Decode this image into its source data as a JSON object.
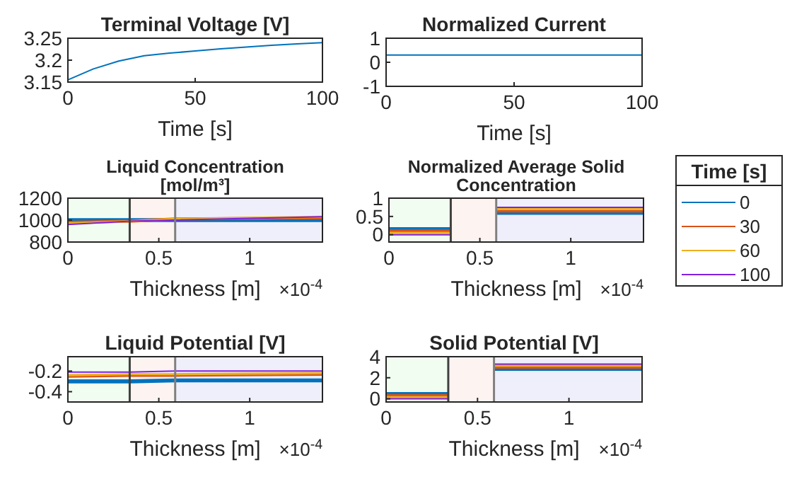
{
  "chart_data": [
    {
      "type": "line",
      "title": "Terminal Voltage [V]",
      "xlabel": "Time [s]",
      "x": [
        0,
        10,
        20,
        30,
        40,
        50,
        60,
        70,
        80,
        90,
        100
      ],
      "xlim": [
        0,
        100
      ],
      "xticks": [
        0,
        50,
        100
      ],
      "ylim": [
        3.15,
        3.25
      ],
      "yticks": [
        3.15,
        3.2,
        3.25
      ],
      "series": [
        {
          "color": "#0072bd",
          "values": [
            3.155,
            3.18,
            3.198,
            3.21,
            3.216,
            3.221,
            3.226,
            3.23,
            3.234,
            3.237,
            3.24
          ]
        }
      ]
    },
    {
      "type": "line",
      "title": "Normalized Current",
      "xlabel": "Time [s]",
      "x": [
        0,
        100
      ],
      "xlim": [
        0,
        100
      ],
      "xticks": [
        0,
        50,
        100
      ],
      "ylim": [
        -1,
        1
      ],
      "yticks": [
        -1,
        0,
        1
      ],
      "series": [
        {
          "color": "#0072bd",
          "values": [
            0.3,
            0.3
          ]
        }
      ]
    },
    {
      "type": "line",
      "title": "Liquid Concentration [mol/m³]",
      "xlabel": "Thickness [m]",
      "annotations": [
        "×10$^{-4}$"
      ],
      "x": [
        0,
        0.34,
        0.59,
        1.4
      ],
      "xlim": [
        0,
        1.4
      ],
      "xticks": [
        0,
        0.5,
        1
      ],
      "ylim": [
        800,
        1200
      ],
      "yticks": [
        800,
        1000,
        1200
      ],
      "bands": [
        {
          "axis": "x",
          "from": 0,
          "to": 0.34,
          "color": "#f2fdf2"
        },
        {
          "axis": "x",
          "from": 0.34,
          "to": 0.59,
          "color": "#fdf3f1"
        },
        {
          "axis": "x",
          "from": 0.59,
          "to": 1.4,
          "color": "#efeffc"
        }
      ],
      "ref_lines": [
        {
          "axis": "x",
          "value": 0.34,
          "color": "#404040"
        },
        {
          "axis": "x",
          "value": 0.59,
          "color": "#808080"
        }
      ],
      "series": [
        {
          "color": "#0072bd",
          "values": [
            1000,
            1000,
            1000,
            1000
          ]
        },
        {
          "color": "#d95319",
          "values": [
            980,
            990,
            1010,
            1020
          ]
        },
        {
          "color": "#edb120",
          "values": [
            970,
            990,
            1010,
            1030
          ]
        },
        {
          "color": "#8020e0",
          "values": [
            960,
            990,
            1000,
            1030
          ]
        }
      ]
    },
    {
      "type": "line",
      "title": "Normalized Average Solid Concentration",
      "xlabel": "Thickness [m]",
      "annotations": [
        "×10$^{-4}$"
      ],
      "legend": "right",
      "legend_title": "Time [s]",
      "x": [
        0,
        0.34,
        0.45,
        0.59,
        1.4
      ],
      "xlim": [
        0,
        1.4
      ],
      "xticks": [
        0,
        0.5,
        1
      ],
      "ylim": [
        -0.2,
        1
      ],
      "yticks": [
        0,
        0.5,
        1
      ],
      "bands": [
        {
          "axis": "x",
          "from": 0,
          "to": 0.34,
          "color": "#f2fdf2"
        },
        {
          "axis": "x",
          "from": 0.34,
          "to": 0.59,
          "color": "#fdf3f1"
        },
        {
          "axis": "x",
          "from": 0.59,
          "to": 1.4,
          "color": "#efeffc"
        }
      ],
      "ref_lines": [
        {
          "axis": "x",
          "value": 0.34,
          "color": "#404040"
        },
        {
          "axis": "x",
          "value": 0.59,
          "color": "#808080"
        }
      ],
      "series": [
        {
          "name": "0",
          "color": "#0072bd",
          "values": [
            0.15,
            0.15,
            null,
            0.6,
            0.6
          ]
        },
        {
          "name": "30",
          "color": "#d95319",
          "values": [
            0.1,
            0.1,
            null,
            0.65,
            0.65
          ]
        },
        {
          "name": "60",
          "color": "#edb120",
          "values": [
            0.05,
            0.05,
            null,
            0.7,
            0.7
          ]
        },
        {
          "name": "100",
          "color": "#8020e0",
          "values": [
            0,
            0,
            null,
            0.75,
            0.75
          ]
        }
      ]
    },
    {
      "type": "line",
      "title": "Liquid Potential [V]",
      "xlabel": "Thickness [m]",
      "annotations": [
        "×10$^{-4}$"
      ],
      "x": [
        0,
        0.34,
        0.59,
        1.4
      ],
      "xlim": [
        0,
        1.4
      ],
      "xticks": [
        0,
        0.5,
        1
      ],
      "ylim": [
        -0.5,
        -0.06
      ],
      "yticks": [
        -0.4,
        -0.2
      ],
      "bands": [
        {
          "axis": "x",
          "from": 0,
          "to": 0.34,
          "color": "#f2fdf2"
        },
        {
          "axis": "x",
          "from": 0.34,
          "to": 0.59,
          "color": "#fdf3f1"
        },
        {
          "axis": "x",
          "from": 0.59,
          "to": 1.4,
          "color": "#efeffc"
        }
      ],
      "ref_lines": [
        {
          "axis": "x",
          "value": 0.34,
          "color": "#404040"
        },
        {
          "axis": "x",
          "value": 0.59,
          "color": "#808080"
        }
      ],
      "series": [
        {
          "color": "#0072bd",
          "values": [
            -0.3,
            -0.3,
            -0.29,
            -0.29
          ]
        },
        {
          "color": "#d95319",
          "values": [
            -0.25,
            -0.24,
            -0.24,
            -0.23
          ]
        },
        {
          "color": "#edb120",
          "values": [
            -0.24,
            -0.23,
            -0.23,
            -0.22
          ]
        },
        {
          "color": "#8020e0",
          "values": [
            -0.21,
            -0.21,
            -0.2,
            -0.2
          ]
        }
      ]
    },
    {
      "type": "line",
      "title": "Solid Potential [V]",
      "xlabel": "Thickness [m]",
      "annotations": [
        "×10$^{-4}$"
      ],
      "x": [
        0,
        0.34,
        0.45,
        0.59,
        1.4
      ],
      "xlim": [
        0,
        1.4
      ],
      "xticks": [
        0,
        0.5,
        1
      ],
      "ylim": [
        -0.3,
        4
      ],
      "yticks": [
        0,
        2,
        4
      ],
      "bands": [
        {
          "axis": "x",
          "from": 0,
          "to": 0.34,
          "color": "#f2fdf2"
        },
        {
          "axis": "x",
          "from": 0.34,
          "to": 0.59,
          "color": "#fdf3f1"
        },
        {
          "axis": "x",
          "from": 0.59,
          "to": 1.4,
          "color": "#efeffc"
        }
      ],
      "ref_lines": [
        {
          "axis": "x",
          "value": 0.34,
          "color": "#404040"
        },
        {
          "axis": "x",
          "value": 0.59,
          "color": "#808080"
        }
      ],
      "series": [
        {
          "color": "#0072bd",
          "values": [
            0.45,
            0.45,
            null,
            2.85,
            2.85
          ]
        },
        {
          "color": "#d95319",
          "values": [
            0.3,
            0.3,
            null,
            3,
            3
          ]
        },
        {
          "color": "#edb120",
          "values": [
            0.15,
            0.15,
            null,
            3.15,
            3.15
          ]
        },
        {
          "color": "#8020e0",
          "values": [
            0,
            0,
            null,
            3.3,
            3.3
          ]
        }
      ]
    }
  ]
}
